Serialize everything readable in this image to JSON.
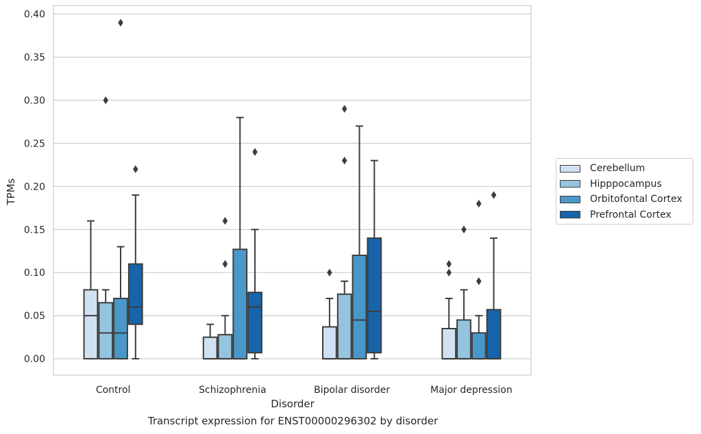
{
  "caption": "Transcript expression for ENST00000296302 by disorder",
  "chart_data": {
    "type": "box",
    "xlabel": "Disorder",
    "ylabel": "TPMs",
    "ylim": [
      -0.019,
      0.41
    ],
    "yticks": [
      "0.00",
      "0.05",
      "0.10",
      "0.15",
      "0.20",
      "0.25",
      "0.30",
      "0.35",
      "0.40"
    ],
    "grid": "horizontal",
    "legend_position": "right",
    "categories": [
      "Control",
      "Schizophrenia",
      "Bipolar disorder",
      "Major depression"
    ],
    "series": [
      {
        "name": "Cerebellum",
        "color": "#d0e1f2",
        "boxes": [
          {
            "lower_whisker": 0.0,
            "q1": 0.0,
            "median": 0.05,
            "q3": 0.08,
            "upper_whisker": 0.16,
            "outliers": []
          },
          {
            "lower_whisker": 0.0,
            "q1": 0.0,
            "median": 0.0,
            "q3": 0.025,
            "upper_whisker": 0.04,
            "outliers": []
          },
          {
            "lower_whisker": 0.0,
            "q1": 0.0,
            "median": 0.0,
            "q3": 0.037,
            "upper_whisker": 0.07,
            "outliers": [
              0.1
            ]
          },
          {
            "lower_whisker": 0.0,
            "q1": 0.0,
            "median": 0.0,
            "q3": 0.035,
            "upper_whisker": 0.07,
            "outliers": [
              0.1,
              0.11
            ]
          }
        ]
      },
      {
        "name": "Hipppocampus",
        "color": "#94c4df",
        "boxes": [
          {
            "lower_whisker": 0.0,
            "q1": 0.0,
            "median": 0.03,
            "q3": 0.065,
            "upper_whisker": 0.08,
            "outliers": [
              0.3
            ]
          },
          {
            "lower_whisker": 0.0,
            "q1": 0.0,
            "median": 0.0,
            "q3": 0.028,
            "upper_whisker": 0.05,
            "outliers": [
              0.11,
              0.16
            ]
          },
          {
            "lower_whisker": 0.0,
            "q1": 0.0,
            "median": 0.0,
            "q3": 0.075,
            "upper_whisker": 0.09,
            "outliers": [
              0.23,
              0.29
            ]
          },
          {
            "lower_whisker": 0.0,
            "q1": 0.0,
            "median": 0.0,
            "q3": 0.045,
            "upper_whisker": 0.08,
            "outliers": [
              0.15
            ]
          }
        ]
      },
      {
        "name": "Orbitofontal Cortex",
        "color": "#4a98c9",
        "boxes": [
          {
            "lower_whisker": 0.0,
            "q1": 0.0,
            "median": 0.03,
            "q3": 0.07,
            "upper_whisker": 0.13,
            "outliers": [
              0.39
            ]
          },
          {
            "lower_whisker": 0.0,
            "q1": 0.0,
            "median": 0.0,
            "q3": 0.127,
            "upper_whisker": 0.28,
            "outliers": []
          },
          {
            "lower_whisker": 0.0,
            "q1": 0.0,
            "median": 0.045,
            "q3": 0.12,
            "upper_whisker": 0.27,
            "outliers": []
          },
          {
            "lower_whisker": 0.0,
            "q1": 0.0,
            "median": 0.0,
            "q3": 0.03,
            "upper_whisker": 0.05,
            "outliers": [
              0.09,
              0.18
            ]
          }
        ]
      },
      {
        "name": "Prefrontal Cortex",
        "color": "#1764ab",
        "boxes": [
          {
            "lower_whisker": 0.0,
            "q1": 0.04,
            "median": 0.06,
            "q3": 0.11,
            "upper_whisker": 0.19,
            "outliers": [
              0.22
            ]
          },
          {
            "lower_whisker": 0.0,
            "q1": 0.007,
            "median": 0.06,
            "q3": 0.077,
            "upper_whisker": 0.15,
            "outliers": [
              0.24
            ]
          },
          {
            "lower_whisker": 0.0,
            "q1": 0.007,
            "median": 0.055,
            "q3": 0.14,
            "upper_whisker": 0.23,
            "outliers": []
          },
          {
            "lower_whisker": 0.0,
            "q1": 0.0,
            "median": 0.0,
            "q3": 0.057,
            "upper_whisker": 0.14,
            "outliers": [
              0.19
            ]
          }
        ]
      }
    ]
  }
}
